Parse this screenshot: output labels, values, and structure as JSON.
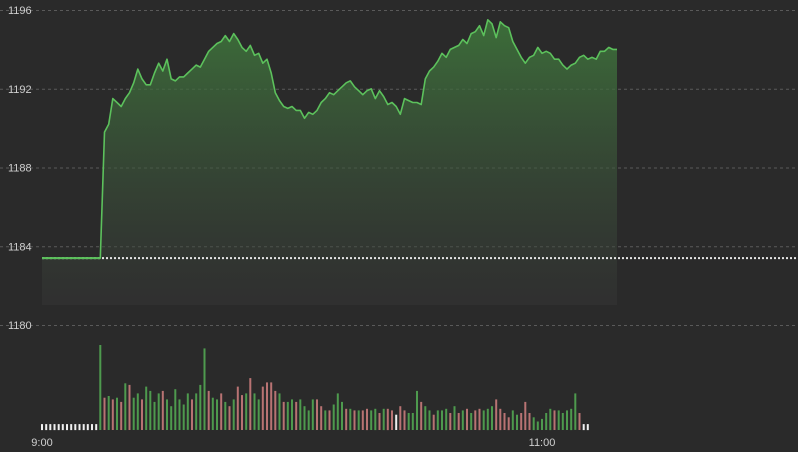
{
  "chart_data": {
    "type": "line",
    "title": "",
    "xlabel": "",
    "ylabel": "",
    "ylim": [
      1180,
      1196
    ],
    "y_ticks": [
      "1196",
      "1192",
      "1188",
      "1184",
      "1180"
    ],
    "x_ticks": [
      {
        "label": "9:00",
        "minute": 0
      },
      {
        "label": "11:00",
        "minute": 120
      }
    ],
    "x_range_minutes": [
      0,
      180
    ],
    "reference_level": 1183.4,
    "grid": true,
    "colors": {
      "line": "#5cc15c",
      "area": "#3f7a3c",
      "reference": "#e6e6e6",
      "grid": "#5a5a5a",
      "volume_up": "#4e9a4e",
      "volume_down": "#b87373",
      "volume_idle": "#f0f0f0",
      "background": "#2a2a2a"
    },
    "price_series": [
      [
        0,
        1183.4
      ],
      [
        14,
        1183.4
      ],
      [
        15,
        1189.8
      ],
      [
        16,
        1190.2
      ],
      [
        17,
        1191.5
      ],
      [
        18,
        1191.3
      ],
      [
        19,
        1191.1
      ],
      [
        20,
        1191.5
      ],
      [
        21,
        1191.8
      ],
      [
        22,
        1192.3
      ],
      [
        23,
        1193.0
      ],
      [
        24,
        1192.5
      ],
      [
        25,
        1192.2
      ],
      [
        26,
        1192.2
      ],
      [
        27,
        1192.8
      ],
      [
        28,
        1193.3
      ],
      [
        29,
        1192.9
      ],
      [
        30,
        1193.5
      ],
      [
        31,
        1192.5
      ],
      [
        32,
        1192.4
      ],
      [
        33,
        1192.6
      ],
      [
        34,
        1192.6
      ],
      [
        35,
        1192.8
      ],
      [
        36,
        1193.0
      ],
      [
        37,
        1193.2
      ],
      [
        38,
        1193.1
      ],
      [
        39,
        1193.5
      ],
      [
        40,
        1193.9
      ],
      [
        41,
        1194.1
      ],
      [
        42,
        1194.3
      ],
      [
        43,
        1194.4
      ],
      [
        44,
        1194.7
      ],
      [
        45,
        1194.4
      ],
      [
        46,
        1194.8
      ],
      [
        47,
        1194.5
      ],
      [
        48,
        1194.1
      ],
      [
        49,
        1193.9
      ],
      [
        50,
        1194.2
      ],
      [
        51,
        1193.7
      ],
      [
        52,
        1193.8
      ],
      [
        53,
        1193.3
      ],
      [
        54,
        1193.5
      ],
      [
        55,
        1192.8
      ],
      [
        56,
        1191.8
      ],
      [
        57,
        1191.4
      ],
      [
        58,
        1191.1
      ],
      [
        59,
        1191.0
      ],
      [
        60,
        1191.1
      ],
      [
        61,
        1190.9
      ],
      [
        62,
        1190.9
      ],
      [
        63,
        1190.5
      ],
      [
        64,
        1190.8
      ],
      [
        65,
        1190.7
      ],
      [
        66,
        1190.9
      ],
      [
        67,
        1191.3
      ],
      [
        68,
        1191.5
      ],
      [
        69,
        1191.8
      ],
      [
        70,
        1191.7
      ],
      [
        71,
        1191.9
      ],
      [
        72,
        1192.1
      ],
      [
        73,
        1192.3
      ],
      [
        74,
        1192.4
      ],
      [
        75,
        1192.1
      ],
      [
        76,
        1191.9
      ],
      [
        77,
        1191.7
      ],
      [
        78,
        1191.9
      ],
      [
        79,
        1192.0
      ],
      [
        80,
        1191.5
      ],
      [
        81,
        1191.9
      ],
      [
        82,
        1191.6
      ],
      [
        83,
        1191.2
      ],
      [
        84,
        1191.3
      ],
      [
        85,
        1191.1
      ],
      [
        86,
        1190.7
      ],
      [
        87,
        1191.5
      ],
      [
        88,
        1191.4
      ],
      [
        89,
        1191.3
      ],
      [
        90,
        1191.3
      ],
      [
        91,
        1191.2
      ],
      [
        92,
        1192.5
      ],
      [
        93,
        1192.9
      ],
      [
        94,
        1193.1
      ],
      [
        95,
        1193.4
      ],
      [
        96,
        1193.8
      ],
      [
        97,
        1193.6
      ],
      [
        98,
        1194.0
      ],
      [
        99,
        1194.1
      ],
      [
        100,
        1194.2
      ],
      [
        101,
        1194.5
      ],
      [
        102,
        1194.3
      ],
      [
        103,
        1194.8
      ],
      [
        104,
        1194.9
      ],
      [
        105,
        1195.2
      ],
      [
        106,
        1194.7
      ],
      [
        107,
        1195.5
      ],
      [
        108,
        1195.3
      ],
      [
        109,
        1194.6
      ],
      [
        110,
        1195.4
      ],
      [
        111,
        1195.2
      ],
      [
        112,
        1195.1
      ],
      [
        113,
        1194.4
      ],
      [
        114,
        1194.0
      ],
      [
        115,
        1193.6
      ],
      [
        116,
        1193.3
      ],
      [
        117,
        1193.6
      ],
      [
        118,
        1193.7
      ],
      [
        119,
        1194.1
      ],
      [
        120,
        1193.8
      ],
      [
        121,
        1193.9
      ],
      [
        122,
        1193.8
      ],
      [
        123,
        1193.5
      ],
      [
        124,
        1193.5
      ],
      [
        125,
        1193.2
      ],
      [
        126,
        1193.0
      ],
      [
        127,
        1193.2
      ],
      [
        128,
        1193.3
      ],
      [
        129,
        1193.6
      ],
      [
        130,
        1193.7
      ],
      [
        131,
        1193.5
      ],
      [
        132,
        1193.6
      ],
      [
        133,
        1193.5
      ],
      [
        134,
        1193.9
      ],
      [
        135,
        1193.9
      ],
      [
        136,
        1194.1
      ],
      [
        137,
        1194.0
      ],
      [
        138,
        1194.0
      ]
    ],
    "volume_max": 100,
    "volume_series": [
      [
        0,
        7,
        "idle"
      ],
      [
        1,
        7,
        "idle"
      ],
      [
        2,
        7,
        "idle"
      ],
      [
        3,
        7,
        "idle"
      ],
      [
        4,
        7,
        "idle"
      ],
      [
        5,
        7,
        "idle"
      ],
      [
        6,
        7,
        "idle"
      ],
      [
        7,
        7,
        "idle"
      ],
      [
        8,
        7,
        "idle"
      ],
      [
        9,
        7,
        "idle"
      ],
      [
        10,
        7,
        "idle"
      ],
      [
        11,
        7,
        "idle"
      ],
      [
        12,
        7,
        "idle"
      ],
      [
        13,
        7,
        "idle"
      ],
      [
        14,
        100,
        "up"
      ],
      [
        15,
        38,
        "down"
      ],
      [
        16,
        40,
        "up"
      ],
      [
        17,
        36,
        "down"
      ],
      [
        18,
        38,
        "up"
      ],
      [
        19,
        33,
        "down"
      ],
      [
        20,
        55,
        "up"
      ],
      [
        21,
        53,
        "down"
      ],
      [
        22,
        38,
        "up"
      ],
      [
        23,
        43,
        "up"
      ],
      [
        24,
        36,
        "down"
      ],
      [
        25,
        51,
        "up"
      ],
      [
        26,
        46,
        "up"
      ],
      [
        27,
        33,
        "up"
      ],
      [
        28,
        43,
        "up"
      ],
      [
        29,
        46,
        "down"
      ],
      [
        30,
        36,
        "up"
      ],
      [
        31,
        28,
        "up"
      ],
      [
        32,
        48,
        "up"
      ],
      [
        33,
        36,
        "up"
      ],
      [
        34,
        30,
        "up"
      ],
      [
        35,
        43,
        "up"
      ],
      [
        36,
        36,
        "down"
      ],
      [
        37,
        43,
        "up"
      ],
      [
        38,
        53,
        "up"
      ],
      [
        39,
        96,
        "up"
      ],
      [
        40,
        46,
        "down"
      ],
      [
        41,
        38,
        "up"
      ],
      [
        42,
        36,
        "up"
      ],
      [
        43,
        43,
        "down"
      ],
      [
        44,
        33,
        "up"
      ],
      [
        45,
        28,
        "down"
      ],
      [
        46,
        36,
        "up"
      ],
      [
        47,
        51,
        "down"
      ],
      [
        48,
        41,
        "down"
      ],
      [
        49,
        43,
        "up"
      ],
      [
        50,
        61,
        "down"
      ],
      [
        51,
        43,
        "up"
      ],
      [
        52,
        36,
        "up"
      ],
      [
        53,
        51,
        "down"
      ],
      [
        54,
        56,
        "down"
      ],
      [
        55,
        56,
        "down"
      ],
      [
        56,
        46,
        "down"
      ],
      [
        57,
        43,
        "up"
      ],
      [
        58,
        33,
        "down"
      ],
      [
        59,
        33,
        "up"
      ],
      [
        60,
        36,
        "up"
      ],
      [
        61,
        33,
        "down"
      ],
      [
        62,
        36,
        "up"
      ],
      [
        63,
        28,
        "up"
      ],
      [
        64,
        23,
        "up"
      ],
      [
        65,
        36,
        "up"
      ],
      [
        66,
        36,
        "down"
      ],
      [
        67,
        28,
        "down"
      ],
      [
        68,
        23,
        "up"
      ],
      [
        69,
        23,
        "down"
      ],
      [
        70,
        30,
        "up"
      ],
      [
        71,
        43,
        "up"
      ],
      [
        72,
        33,
        "up"
      ],
      [
        73,
        25,
        "down"
      ],
      [
        74,
        25,
        "up"
      ],
      [
        75,
        23,
        "down"
      ],
      [
        76,
        23,
        "up"
      ],
      [
        77,
        23,
        "down"
      ],
      [
        78,
        25,
        "down"
      ],
      [
        79,
        23,
        "up"
      ],
      [
        80,
        25,
        "up"
      ],
      [
        81,
        20,
        "down"
      ],
      [
        82,
        25,
        "up"
      ],
      [
        83,
        25,
        "down"
      ],
      [
        84,
        23,
        "down"
      ],
      [
        85,
        18,
        "idle"
      ],
      [
        86,
        28,
        "down"
      ],
      [
        87,
        23,
        "down"
      ],
      [
        88,
        20,
        "up"
      ],
      [
        89,
        20,
        "up"
      ],
      [
        90,
        46,
        "up"
      ],
      [
        91,
        33,
        "down"
      ],
      [
        92,
        28,
        "up"
      ],
      [
        93,
        23,
        "up"
      ],
      [
        94,
        18,
        "down"
      ],
      [
        95,
        23,
        "up"
      ],
      [
        96,
        23,
        "up"
      ],
      [
        97,
        25,
        "up"
      ],
      [
        98,
        20,
        "down"
      ],
      [
        99,
        28,
        "up"
      ],
      [
        100,
        20,
        "down"
      ],
      [
        101,
        23,
        "up"
      ],
      [
        102,
        25,
        "down"
      ],
      [
        103,
        20,
        "up"
      ],
      [
        104,
        23,
        "down"
      ],
      [
        105,
        25,
        "down"
      ],
      [
        106,
        23,
        "up"
      ],
      [
        107,
        25,
        "up"
      ],
      [
        108,
        28,
        "up"
      ],
      [
        109,
        36,
        "down"
      ],
      [
        110,
        25,
        "down"
      ],
      [
        111,
        20,
        "down"
      ],
      [
        112,
        15,
        "down"
      ],
      [
        113,
        23,
        "up"
      ],
      [
        114,
        18,
        "up"
      ],
      [
        115,
        20,
        "down"
      ],
      [
        116,
        33,
        "down"
      ],
      [
        117,
        20,
        "down"
      ],
      [
        118,
        15,
        "up"
      ],
      [
        119,
        10,
        "up"
      ],
      [
        120,
        13,
        "up"
      ],
      [
        121,
        20,
        "up"
      ],
      [
        122,
        25,
        "up"
      ],
      [
        123,
        23,
        "down"
      ],
      [
        124,
        23,
        "up"
      ],
      [
        125,
        20,
        "up"
      ],
      [
        126,
        23,
        "up"
      ],
      [
        127,
        25,
        "up"
      ],
      [
        128,
        43,
        "up"
      ],
      [
        129,
        20,
        "down"
      ],
      [
        130,
        7,
        "idle"
      ],
      [
        131,
        7,
        "idle"
      ]
    ]
  }
}
